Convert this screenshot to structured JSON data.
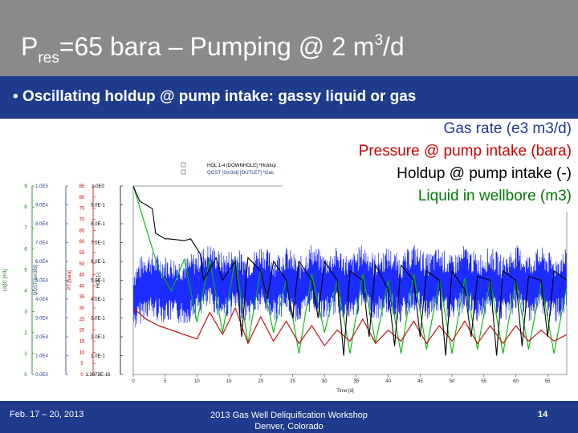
{
  "slide": {
    "title_main": "P",
    "title_sub": "res",
    "title_mid": "=65 bara – Pumping @ 2 m",
    "title_sup": "3",
    "title_end": "/d",
    "bullet": "Oscillating holdup @ pump intake: gassy liquid or gas",
    "legend_text": [
      {
        "text": "Gas rate (e3 m3/d)",
        "color": "#1f3b8c"
      },
      {
        "text": "Pressure @ pump intake (bara)",
        "color": "#cc0000"
      },
      {
        "text": "Holdup @ pump intake (-)",
        "color": "#000000"
      },
      {
        "text": "Liquid in wellbore (m3)",
        "color": "#007a00"
      }
    ],
    "footer_date": "Feb. 17 – 20, 2013",
    "footer_event_1": "2013 Gas Well Deliquification Workshop",
    "footer_event_2": "Denver, Colorado",
    "page_number": "14"
  },
  "chart_data": {
    "type": "line",
    "xlabel": "Time [d]",
    "x_ticks": [
      0,
      5,
      10,
      15,
      20,
      25,
      30,
      35,
      40,
      45,
      50,
      55,
      60,
      65
    ],
    "xlim": [
      0,
      68
    ],
    "inner_legend": [
      "HOL 1-4 [DOWNHOLE] *Holdup",
      "QGST [Sm3/d] [OUTLET] *Gas"
    ],
    "axes": [
      {
        "label": "LIQC [m3]",
        "ticks": [
          "0",
          "1",
          "2",
          "3",
          "4",
          "5",
          "6",
          "7",
          "8",
          "9"
        ],
        "color": "#007a00"
      },
      {
        "label": "QGST[Sm3/d]",
        "ticks": [
          "0.0E0",
          "1.0E4",
          "2.0E4",
          "3.0E4",
          "4.0E4",
          "5.0E4",
          "6.0E4",
          "7.0E4",
          "8.0E4",
          "9.0E4",
          "1.0E5"
        ],
        "color": "#1f3b8c"
      },
      {
        "label": "PT [bara]",
        "ticks": [
          "0",
          "5",
          "10",
          "15",
          "20",
          "25",
          "30",
          "35",
          "40",
          "45",
          "50",
          "55",
          "60",
          "65",
          "70",
          "75",
          "80",
          "85"
        ],
        "color": "#cc0000"
      },
      {
        "label": "HOL [-]",
        "ticks": [
          "1.3878E-16",
          "1.0E-1",
          "2.0E-1",
          "3.0E-1",
          "4.0E-1",
          "5.0E-1",
          "6.0E-1",
          "7.0E-1",
          "8.0E-1",
          "9.0E-1",
          "1.0E0"
        ],
        "color": "#000000"
      }
    ],
    "series": [
      {
        "name": "Holdup",
        "color": "#000000",
        "x": [
          0,
          1,
          2,
          3,
          3.5,
          5,
          5.5,
          8,
          9,
          10.5,
          11,
          13,
          14,
          16,
          17,
          18,
          20,
          21,
          22,
          24,
          25,
          26,
          28,
          29,
          30,
          32,
          33,
          34,
          36,
          37,
          38,
          40,
          41,
          42,
          44,
          45,
          46,
          48,
          49,
          50,
          52,
          53,
          54,
          56,
          57,
          58,
          60,
          61,
          62,
          64,
          65,
          66,
          68
        ],
        "y": [
          1.0,
          0.92,
          0.9,
          0.88,
          0.75,
          0.72,
          0.72,
          0.71,
          0.72,
          0.64,
          0.5,
          0.62,
          0.5,
          0.6,
          0.2,
          0.62,
          0.55,
          0.4,
          0.6,
          0.5,
          0.3,
          0.6,
          0.5,
          0.3,
          0.6,
          0.5,
          0.1,
          0.55,
          0.5,
          0.2,
          0.58,
          0.45,
          0.15,
          0.58,
          0.5,
          0.2,
          0.55,
          0.5,
          0.1,
          0.55,
          0.45,
          0.2,
          0.52,
          0.5,
          0.1,
          0.55,
          0.5,
          0.15,
          0.52,
          0.5,
          0.2,
          0.55,
          0.5
        ]
      },
      {
        "name": "Pressure",
        "color": "#cc0000",
        "x": [
          0,
          2,
          4,
          6,
          8,
          10,
          12,
          14,
          16,
          18,
          20,
          22,
          24,
          26,
          28,
          30,
          32,
          34,
          36,
          38,
          40,
          42,
          44,
          46,
          48,
          50,
          52,
          54,
          56,
          58,
          60,
          62,
          64,
          66,
          68
        ],
        "y": [
          30,
          25,
          22,
          20,
          18,
          16,
          28,
          18,
          30,
          14,
          26,
          15,
          24,
          14,
          22,
          13,
          20,
          15,
          25,
          14,
          20,
          15,
          24,
          14,
          22,
          15,
          24,
          14,
          22,
          14,
          22,
          15,
          20,
          15,
          18
        ]
      },
      {
        "name": "Liquid",
        "color": "#00bb00",
        "x": [
          0,
          2,
          4,
          6,
          8,
          10,
          12,
          14,
          16,
          18,
          20,
          22,
          24,
          26,
          28,
          30,
          32,
          34,
          36,
          38,
          40,
          42,
          44,
          46,
          48,
          50,
          52,
          54,
          56,
          58,
          60,
          62,
          64,
          66,
          68
        ],
        "y": [
          9,
          7,
          5,
          4,
          5.5,
          2.5,
          5.5,
          2,
          5.5,
          1.5,
          5,
          2,
          4.5,
          1,
          4.8,
          2,
          4.5,
          1,
          4.8,
          1.5,
          4.5,
          1,
          4.8,
          1.2,
          4.5,
          1,
          4.6,
          1.2,
          4.5,
          1,
          4.5,
          1.2,
          4.4,
          1,
          4.2
        ]
      },
      {
        "name": "Gas",
        "color": "#1c2bff",
        "x": [
          0,
          2,
          4,
          6,
          8,
          10,
          12,
          14,
          16,
          18,
          20,
          22,
          24,
          26,
          28,
          30,
          32,
          34,
          36,
          38,
          40,
          42,
          44,
          46,
          48,
          50,
          52,
          54,
          56,
          58,
          60,
          62,
          64,
          66,
          68
        ],
        "y": [
          40000,
          48000,
          46000,
          45000,
          44000,
          48000,
          52000,
          47000,
          50000,
          45000,
          52000,
          46000,
          50000,
          44000,
          52000,
          46000,
          50000,
          45000,
          52000,
          46000,
          50000,
          45000,
          52000,
          46000,
          50000,
          45000,
          51000,
          46000,
          50000,
          45000,
          51000,
          46000,
          50000,
          45000,
          49000
        ],
        "amplitude": 18000
      }
    ]
  }
}
